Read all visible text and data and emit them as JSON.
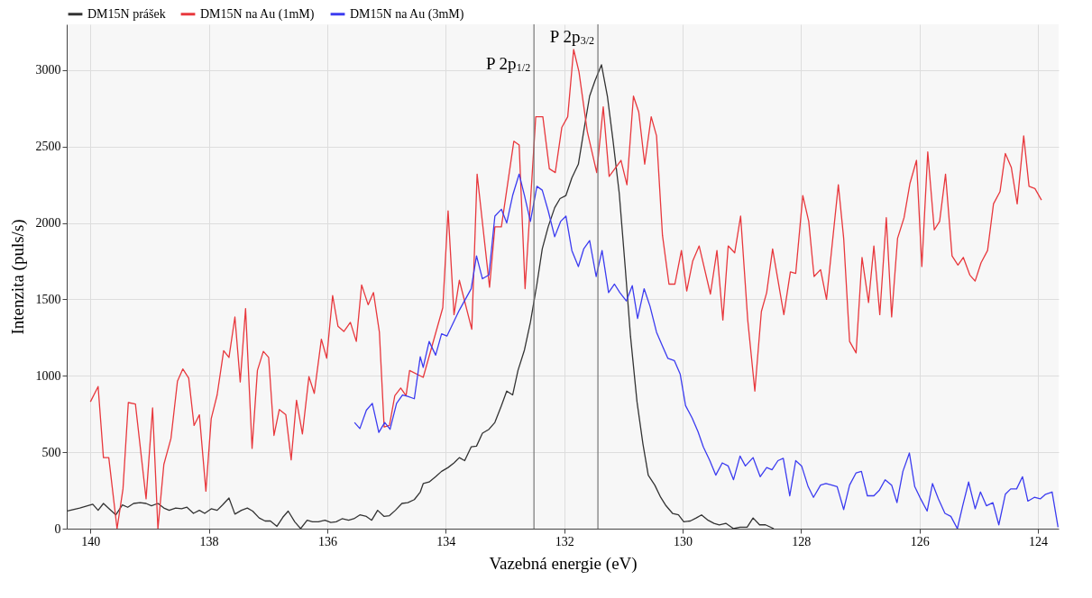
{
  "chart_data": {
    "type": "line",
    "xlabel": "Vazebná energie (eV)",
    "ylabel": "Intenzita (puls/s)",
    "xlim": [
      140.4,
      123.65
    ],
    "ylim": [
      0,
      3300
    ],
    "xticks": [
      140,
      138,
      136,
      134,
      132,
      130,
      128,
      126,
      124
    ],
    "yticks": [
      0,
      500,
      1000,
      1500,
      2000,
      2500,
      3000
    ],
    "grid": true,
    "legend": "top left",
    "line_style": "solid",
    "series": [
      {
        "name": "DM15N prášek",
        "color": "#333333",
        "x": [
          140.39,
          140.18,
          139.96,
          139.87,
          139.78,
          139.67,
          139.57,
          139.46,
          139.37,
          139.27,
          139.16,
          139.06,
          138.97,
          138.86,
          138.76,
          138.67,
          138.56,
          138.46,
          138.37,
          138.26,
          138.16,
          138.07,
          137.96,
          137.86,
          137.77,
          137.66,
          137.56,
          137.45,
          137.35,
          137.26,
          137.15,
          137.05,
          136.96,
          136.85,
          136.75,
          136.66,
          136.55,
          136.45,
          136.34,
          136.25,
          136.15,
          136.04,
          135.94,
          135.85,
          135.75,
          135.64,
          135.55,
          135.45,
          135.34,
          135.25,
          135.15,
          135.04,
          134.95,
          134.85,
          134.74,
          134.64,
          134.53,
          134.43,
          134.38,
          134.28,
          134.17,
          134.07,
          133.96,
          133.86,
          133.77,
          133.68,
          133.57,
          133.48,
          133.38,
          133.27,
          133.17,
          133.06,
          132.97,
          132.87,
          132.78,
          132.67,
          132.57,
          132.46,
          132.37,
          132.27,
          132.16,
          132.07,
          131.97,
          131.87,
          131.76,
          131.67,
          131.57,
          131.48,
          131.37,
          131.27,
          131.18,
          131.07,
          130.97,
          130.88,
          130.77,
          130.67,
          130.58,
          130.47,
          130.37,
          130.28,
          130.17,
          130.07,
          129.98,
          129.87,
          129.77,
          129.68,
          129.57,
          129.47,
          129.38,
          129.27,
          129.14,
          129.03,
          128.91,
          128.81,
          128.7,
          128.6,
          128.46
        ],
        "values": [
          115,
          135,
          160,
          120,
          165,
          125,
          90,
          155,
          140,
          165,
          170,
          165,
          150,
          165,
          135,
          120,
          135,
          130,
          140,
          100,
          120,
          100,
          130,
          120,
          155,
          200,
          95,
          120,
          135,
          115,
          70,
          50,
          50,
          15,
          75,
          115,
          45,
          0,
          55,
          45,
          45,
          55,
          40,
          45,
          65,
          55,
          65,
          90,
          80,
          55,
          120,
          80,
          85,
          120,
          165,
          170,
          190,
          240,
          295,
          305,
          340,
          375,
          400,
          430,
          465,
          445,
          535,
          540,
          625,
          650,
          695,
          805,
          900,
          875,
          1035,
          1170,
          1350,
          1600,
          1830,
          1975,
          2100,
          2160,
          2180,
          2295,
          2385,
          2600,
          2830,
          2930,
          3035,
          2830,
          2555,
          2195,
          1715,
          1260,
          830,
          555,
          350,
          285,
          205,
          150,
          100,
          90,
          45,
          50,
          70,
          90,
          55,
          35,
          25,
          35,
          0,
          10,
          10,
          70,
          25,
          25,
          0
        ]
      },
      {
        "name": "DM15N na Au (1mM)",
        "color": "#e8383d",
        "x": [
          140,
          139.87,
          139.78,
          139.69,
          139.55,
          139.45,
          139.36,
          139.24,
          139.06,
          138.95,
          138.86,
          138.76,
          138.64,
          138.53,
          138.44,
          138.34,
          138.25,
          138.16,
          138.05,
          137.96,
          137.86,
          137.75,
          137.66,
          137.56,
          137.47,
          137.38,
          137.27,
          137.18,
          137.08,
          136.99,
          136.9,
          136.81,
          136.7,
          136.61,
          136.52,
          136.42,
          136.31,
          136.22,
          136.1,
          136.01,
          135.91,
          135.82,
          135.72,
          135.61,
          135.51,
          135.42,
          135.31,
          135.22,
          135.12,
          135.04,
          134.95,
          134.86,
          134.76,
          134.67,
          134.61,
          134.38,
          134.05,
          133.96,
          133.86,
          133.77,
          133.56,
          133.47,
          133.26,
          133.17,
          133.06,
          132.85,
          132.76,
          132.66,
          132.48,
          132.36,
          132.25,
          132.15,
          132.04,
          131.94,
          131.84,
          131.75,
          131.61,
          131.45,
          131.34,
          131.24,
          131.04,
          130.94,
          130.83,
          130.74,
          130.64,
          130.53,
          130.44,
          130.34,
          130.23,
          130.13,
          130.02,
          129.93,
          129.83,
          129.72,
          129.53,
          129.42,
          129.32,
          129.23,
          129.12,
          129.02,
          128.9,
          128.78,
          128.67,
          128.58,
          128.48,
          128.29,
          128.18,
          128.09,
          127.97,
          127.87,
          127.78,
          127.67,
          127.57,
          127.37,
          127.28,
          127.18,
          127.07,
          126.97,
          126.86,
          126.77,
          126.67,
          126.56,
          126.47,
          126.37,
          126.26,
          126.16,
          126.05,
          125.96,
          125.86,
          125.75,
          125.66,
          125.56,
          125.45,
          125.35,
          125.26,
          125.15,
          125.06,
          124.96,
          124.85,
          124.75,
          124.64,
          124.55,
          124.45,
          124.35,
          124.24,
          124.15,
          124.05,
          123.94
        ],
        "values": [
          830,
          930,
          465,
          465,
          0,
          260,
          825,
          815,
          195,
          790,
          0,
          420,
          590,
          965,
          1045,
          985,
          675,
          745,
          245,
          720,
          875,
          1165,
          1120,
          1385,
          960,
          1440,
          525,
          1035,
          1160,
          1120,
          610,
          780,
          745,
          450,
          840,
          620,
          995,
          885,
          1240,
          1115,
          1525,
          1325,
          1290,
          1350,
          1225,
          1595,
          1465,
          1545,
          1285,
          665,
          675,
          870,
          920,
          870,
          1035,
          990,
          1445,
          2080,
          1400,
          1625,
          1305,
          2320,
          1580,
          1975,
          1975,
          2535,
          2510,
          1570,
          2695,
          2695,
          2355,
          2330,
          2625,
          2695,
          3135,
          2990,
          2600,
          2330,
          2760,
          2305,
          2410,
          2250,
          2830,
          2725,
          2385,
          2695,
          2570,
          1920,
          1600,
          1600,
          1820,
          1555,
          1750,
          1850,
          1535,
          1820,
          1365,
          1850,
          1805,
          2045,
          1365,
          900,
          1420,
          1545,
          1830,
          1400,
          1680,
          1670,
          2180,
          2010,
          1650,
          1695,
          1500,
          2250,
          1900,
          1225,
          1150,
          1775,
          1480,
          1850,
          1400,
          2035,
          1385,
          1900,
          2035,
          2260,
          2410,
          1715,
          2465,
          1955,
          2010,
          2320,
          1785,
          1725,
          1775,
          1660,
          1620,
          1740,
          1820,
          2125,
          2205,
          2455,
          2365,
          2125,
          2570,
          2240,
          2225,
          2150
        ]
      },
      {
        "name": "DM15N na Au (3mM)",
        "color": "#3c3cf0",
        "x": [
          135.54,
          135.45,
          135.34,
          135.24,
          135.13,
          135.03,
          134.94,
          134.83,
          134.73,
          134.64,
          134.53,
          134.43,
          134.38,
          134.28,
          134.17,
          134.07,
          133.98,
          133.77,
          133.57,
          133.48,
          133.38,
          133.27,
          133.17,
          133.06,
          132.97,
          132.87,
          132.76,
          132.67,
          132.57,
          132.46,
          132.37,
          132.27,
          132.16,
          132.06,
          131.97,
          131.87,
          131.76,
          131.67,
          131.57,
          131.46,
          131.36,
          131.25,
          131.15,
          131.06,
          130.95,
          130.85,
          130.76,
          130.65,
          130.55,
          130.44,
          130.34,
          130.25,
          130.14,
          130.04,
          129.95,
          129.84,
          129.74,
          129.65,
          129.54,
          129.44,
          129.33,
          129.23,
          129.14,
          129.03,
          128.94,
          128.81,
          128.69,
          128.58,
          128.49,
          128.39,
          128.3,
          128.19,
          128.09,
          127.99,
          127.88,
          127.79,
          127.67,
          127.58,
          127.48,
          127.39,
          127.28,
          127.18,
          127.07,
          126.98,
          126.88,
          126.77,
          126.68,
          126.58,
          126.47,
          126.38,
          126.28,
          126.17,
          126.08,
          125.98,
          125.87,
          125.78,
          125.68,
          125.57,
          125.47,
          125.36,
          125.27,
          125.17,
          125.06,
          124.97,
          124.87,
          124.76,
          124.66,
          124.55,
          124.46,
          124.36,
          124.26,
          124.17,
          124.06,
          123.96,
          123.87,
          123.76,
          123.66
        ],
        "values": [
          695,
          655,
          775,
          820,
          630,
          695,
          650,
          820,
          875,
          865,
          850,
          1125,
          1055,
          1225,
          1135,
          1275,
          1260,
          1430,
          1570,
          1785,
          1635,
          1660,
          2045,
          2090,
          2000,
          2180,
          2320,
          2180,
          2010,
          2240,
          2215,
          2080,
          1910,
          2010,
          2045,
          1820,
          1715,
          1830,
          1885,
          1650,
          1820,
          1545,
          1600,
          1545,
          1490,
          1590,
          1375,
          1570,
          1455,
          1285,
          1195,
          1115,
          1100,
          1010,
          805,
          725,
          635,
          535,
          445,
          350,
          430,
          410,
          320,
          475,
          410,
          465,
          340,
          400,
          385,
          445,
          460,
          215,
          445,
          410,
          275,
          205,
          285,
          295,
          285,
          275,
          125,
          285,
          365,
          375,
          215,
          215,
          250,
          320,
          285,
          170,
          375,
          495,
          275,
          195,
          115,
          295,
          195,
          100,
          80,
          0,
          150,
          305,
          130,
          240,
          150,
          170,
          25,
          225,
          260,
          260,
          340,
          180,
          205,
          195,
          225,
          240,
          10
        ]
      }
    ],
    "ref_lines": [
      {
        "axis": "x",
        "value": 132.51,
        "label": "P 2p$_{1/2}$",
        "color": "#777777"
      },
      {
        "axis": "x",
        "value": 131.43,
        "label": "P 2p$_{3/2}$",
        "color": "#777777"
      }
    ]
  }
}
